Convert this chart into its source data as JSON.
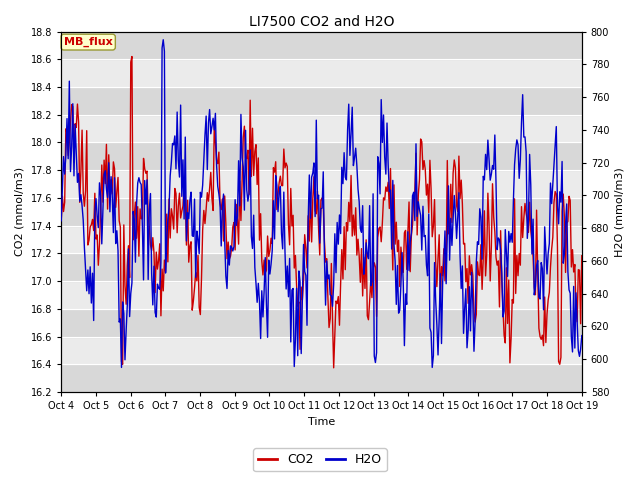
{
  "title": "LI7500 CO2 and H2O",
  "xlabel": "Time",
  "ylabel_left": "CO2 (mmol/m3)",
  "ylabel_right": "H2O (mmol/m3)",
  "xlim": [
    0,
    15
  ],
  "ylim_left": [
    16.2,
    18.8
  ],
  "ylim_right": [
    580,
    800
  ],
  "xtick_labels": [
    "Oct 4",
    "Oct 5",
    "Oct 6",
    "Oct 7",
    "Oct 8",
    "Oct 9",
    "Oct 10",
    "Oct 11",
    "Oct 12",
    "Oct 13",
    "Oct 14",
    "Oct 15",
    "Oct 16",
    "Oct 17",
    "Oct 18",
    "Oct 19"
  ],
  "ytick_left": [
    16.2,
    16.4,
    16.6,
    16.8,
    17.0,
    17.2,
    17.4,
    17.6,
    17.8,
    18.0,
    18.2,
    18.4,
    18.6,
    18.8
  ],
  "ytick_right": [
    580,
    600,
    620,
    640,
    660,
    680,
    700,
    720,
    740,
    760,
    780,
    800
  ],
  "co2_color": "#cc0000",
  "h2o_color": "#0000cc",
  "bg_color": "#ffffff",
  "plot_bg_color": "#ebebeb",
  "band_color_dark": "#d8d8d8",
  "band_color_light": "#ebebeb",
  "annotation_text": "MB_flux",
  "annotation_color": "#cc0000",
  "annotation_bg": "#ffffcc",
  "annotation_edge": "#999933",
  "linewidth": 1.0,
  "figsize": [
    6.4,
    4.8
  ],
  "dpi": 100,
  "title_fontsize": 10,
  "axis_label_fontsize": 8,
  "tick_fontsize": 7,
  "annotation_fontsize": 8
}
